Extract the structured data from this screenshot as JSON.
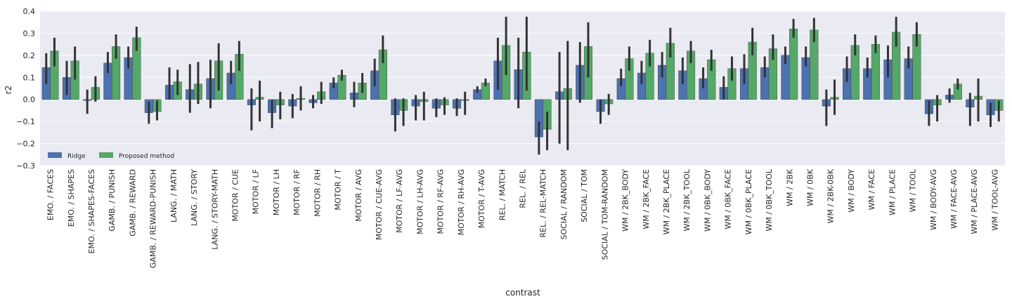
{
  "colors": {
    "ridge": "#4c72b0",
    "proposed": "#55a868",
    "background": "#eaeaf2",
    "grid": "#ffffff",
    "errorbar": "#333333"
  },
  "chart_data": {
    "type": "bar",
    "title": "",
    "xlabel": "contrast",
    "ylabel": "r2",
    "ylim": [
      -0.3,
      0.4
    ],
    "yticks": [
      "−0.3",
      "−0.2",
      "−0.1",
      "0.0",
      "0.1",
      "0.2",
      "0.3",
      "0.4"
    ],
    "grid": true,
    "legend": {
      "position": "lower-left",
      "entries": [
        "Ridge",
        "Proposed method"
      ]
    },
    "categories": [
      "EMO. / FACES",
      "EMO. / SHAPES",
      "EMO. / SHAPES-FACES",
      "GAMB. / PUNISH",
      "GAMB. / REWARD",
      "GAMB. / REWARD-PUNISH",
      "LANG. / MATH",
      "LANG. / STORY",
      "LANG. / STORY-MATH",
      "MOTOR / CUE",
      "MOTOR / LF",
      "MOTOR / LH",
      "MOTOR / RF",
      "MOTOR / RH",
      "MOTOR / T",
      "MOTOR / AVG",
      "MOTOR / CUE-AVG",
      "MOTOR / LF-AVG",
      "MOTOR / LH-AVG",
      "MOTOR / RF-AVG",
      "MOTOR / RH-AVG",
      "MOTOR / T-AVG",
      "REL. / MATCH",
      "REL. / REL",
      "REL. / REL-MATCH",
      "SOCIAL / RANDOM",
      "SOCIAL / TOM",
      "SOCIAL / TOM-RANDOM",
      "WM / 2BK_BODY",
      "WM / 2BK_FACE",
      "WM / 2BK_PLACE",
      "WM / 2BK_TOOL",
      "WM / 0BK_BODY",
      "WM / 0BK_FACE",
      "WM / 0BK_PLACE",
      "WM / 0BK_TOOL",
      "WM / 2BK",
      "WM / 0BK",
      "WM / 2BK-0BK",
      "WM / BODY",
      "WM / FACE",
      "WM / PLACE",
      "WM / TOOL",
      "WM / BODY-AVG",
      "WM / FACE-AVG",
      "WM / PLACE-AVG",
      "WM / TOOL-AVG"
    ],
    "series": [
      {
        "name": "Ridge",
        "values": [
          0.145,
          0.1,
          -0.005,
          0.165,
          0.19,
          -0.06,
          0.065,
          0.045,
          0.095,
          0.12,
          -0.025,
          -0.06,
          -0.03,
          -0.015,
          0.075,
          0.03,
          0.13,
          -0.07,
          -0.03,
          -0.04,
          -0.04,
          0.045,
          0.175,
          0.135,
          -0.17,
          0.035,
          0.155,
          -0.055,
          0.095,
          0.12,
          0.155,
          0.13,
          0.095,
          0.055,
          0.14,
          0.145,
          0.2,
          0.19,
          -0.03,
          0.14,
          0.14,
          0.18,
          0.185,
          -0.065,
          0.02,
          -0.035,
          -0.07
        ],
        "err_low": [
          0.07,
          0.02,
          -0.065,
          0.12,
          0.14,
          -0.11,
          0.0,
          -0.06,
          -0.04,
          0.07,
          -0.14,
          -0.13,
          -0.085,
          -0.04,
          0.05,
          -0.035,
          0.06,
          -0.145,
          -0.095,
          -0.08,
          -0.075,
          0.03,
          0.045,
          -0.04,
          -0.25,
          -0.2,
          -0.015,
          -0.11,
          0.06,
          0.07,
          0.1,
          0.07,
          0.05,
          0.0,
          0.07,
          0.1,
          0.16,
          0.15,
          -0.12,
          0.08,
          0.1,
          0.1,
          0.14,
          -0.12,
          -0.015,
          -0.12,
          -0.125
        ],
        "err_high": [
          0.21,
          0.175,
          0.045,
          0.215,
          0.24,
          -0.01,
          0.145,
          0.16,
          0.18,
          0.175,
          0.05,
          0.0,
          0.025,
          0.02,
          0.1,
          0.08,
          0.185,
          0.005,
          0.02,
          0.005,
          0.005,
          0.06,
          0.28,
          0.28,
          -0.1,
          0.215,
          0.26,
          0.0,
          0.14,
          0.175,
          0.215,
          0.19,
          0.145,
          0.105,
          0.205,
          0.195,
          0.24,
          0.24,
          0.045,
          0.195,
          0.19,
          0.245,
          0.24,
          -0.005,
          0.05,
          0.03,
          -0.015
        ]
      },
      {
        "name": "Proposed method",
        "values": [
          0.22,
          0.175,
          0.055,
          0.24,
          0.28,
          -0.055,
          0.08,
          0.07,
          0.175,
          0.205,
          0.01,
          -0.025,
          0.005,
          0.035,
          0.11,
          0.075,
          0.225,
          -0.05,
          -0.01,
          -0.025,
          -0.005,
          0.075,
          0.245,
          0.215,
          -0.135,
          0.05,
          0.24,
          -0.02,
          0.185,
          0.21,
          0.255,
          0.22,
          0.18,
          0.14,
          0.26,
          0.23,
          0.32,
          0.315,
          0.01,
          0.245,
          0.25,
          0.305,
          0.295,
          -0.025,
          0.07,
          0.015,
          -0.05
        ],
        "err_low": [
          0.15,
          0.09,
          -0.01,
          0.185,
          0.22,
          -0.095,
          0.02,
          -0.02,
          0.04,
          0.13,
          -0.1,
          -0.09,
          -0.05,
          -0.02,
          0.085,
          0.03,
          0.165,
          -0.12,
          -0.095,
          -0.07,
          -0.07,
          0.06,
          0.11,
          0.04,
          -0.23,
          -0.23,
          0.1,
          -0.07,
          0.13,
          0.15,
          0.19,
          0.165,
          0.13,
          0.085,
          0.2,
          0.18,
          0.28,
          0.26,
          -0.07,
          0.2,
          0.21,
          0.24,
          0.24,
          -0.1,
          0.045,
          -0.1,
          -0.1
        ],
        "err_high": [
          0.28,
          0.24,
          0.105,
          0.295,
          0.33,
          -0.005,
          0.135,
          0.17,
          0.255,
          0.265,
          0.085,
          0.035,
          0.06,
          0.08,
          0.135,
          0.12,
          0.29,
          0.005,
          0.035,
          0.01,
          0.035,
          0.095,
          0.375,
          0.375,
          -0.055,
          0.265,
          0.35,
          0.025,
          0.24,
          0.27,
          0.325,
          0.265,
          0.225,
          0.195,
          0.325,
          0.295,
          0.365,
          0.37,
          0.09,
          0.295,
          0.29,
          0.375,
          0.35,
          0.02,
          0.095,
          0.095,
          -0.005
        ]
      }
    ]
  }
}
